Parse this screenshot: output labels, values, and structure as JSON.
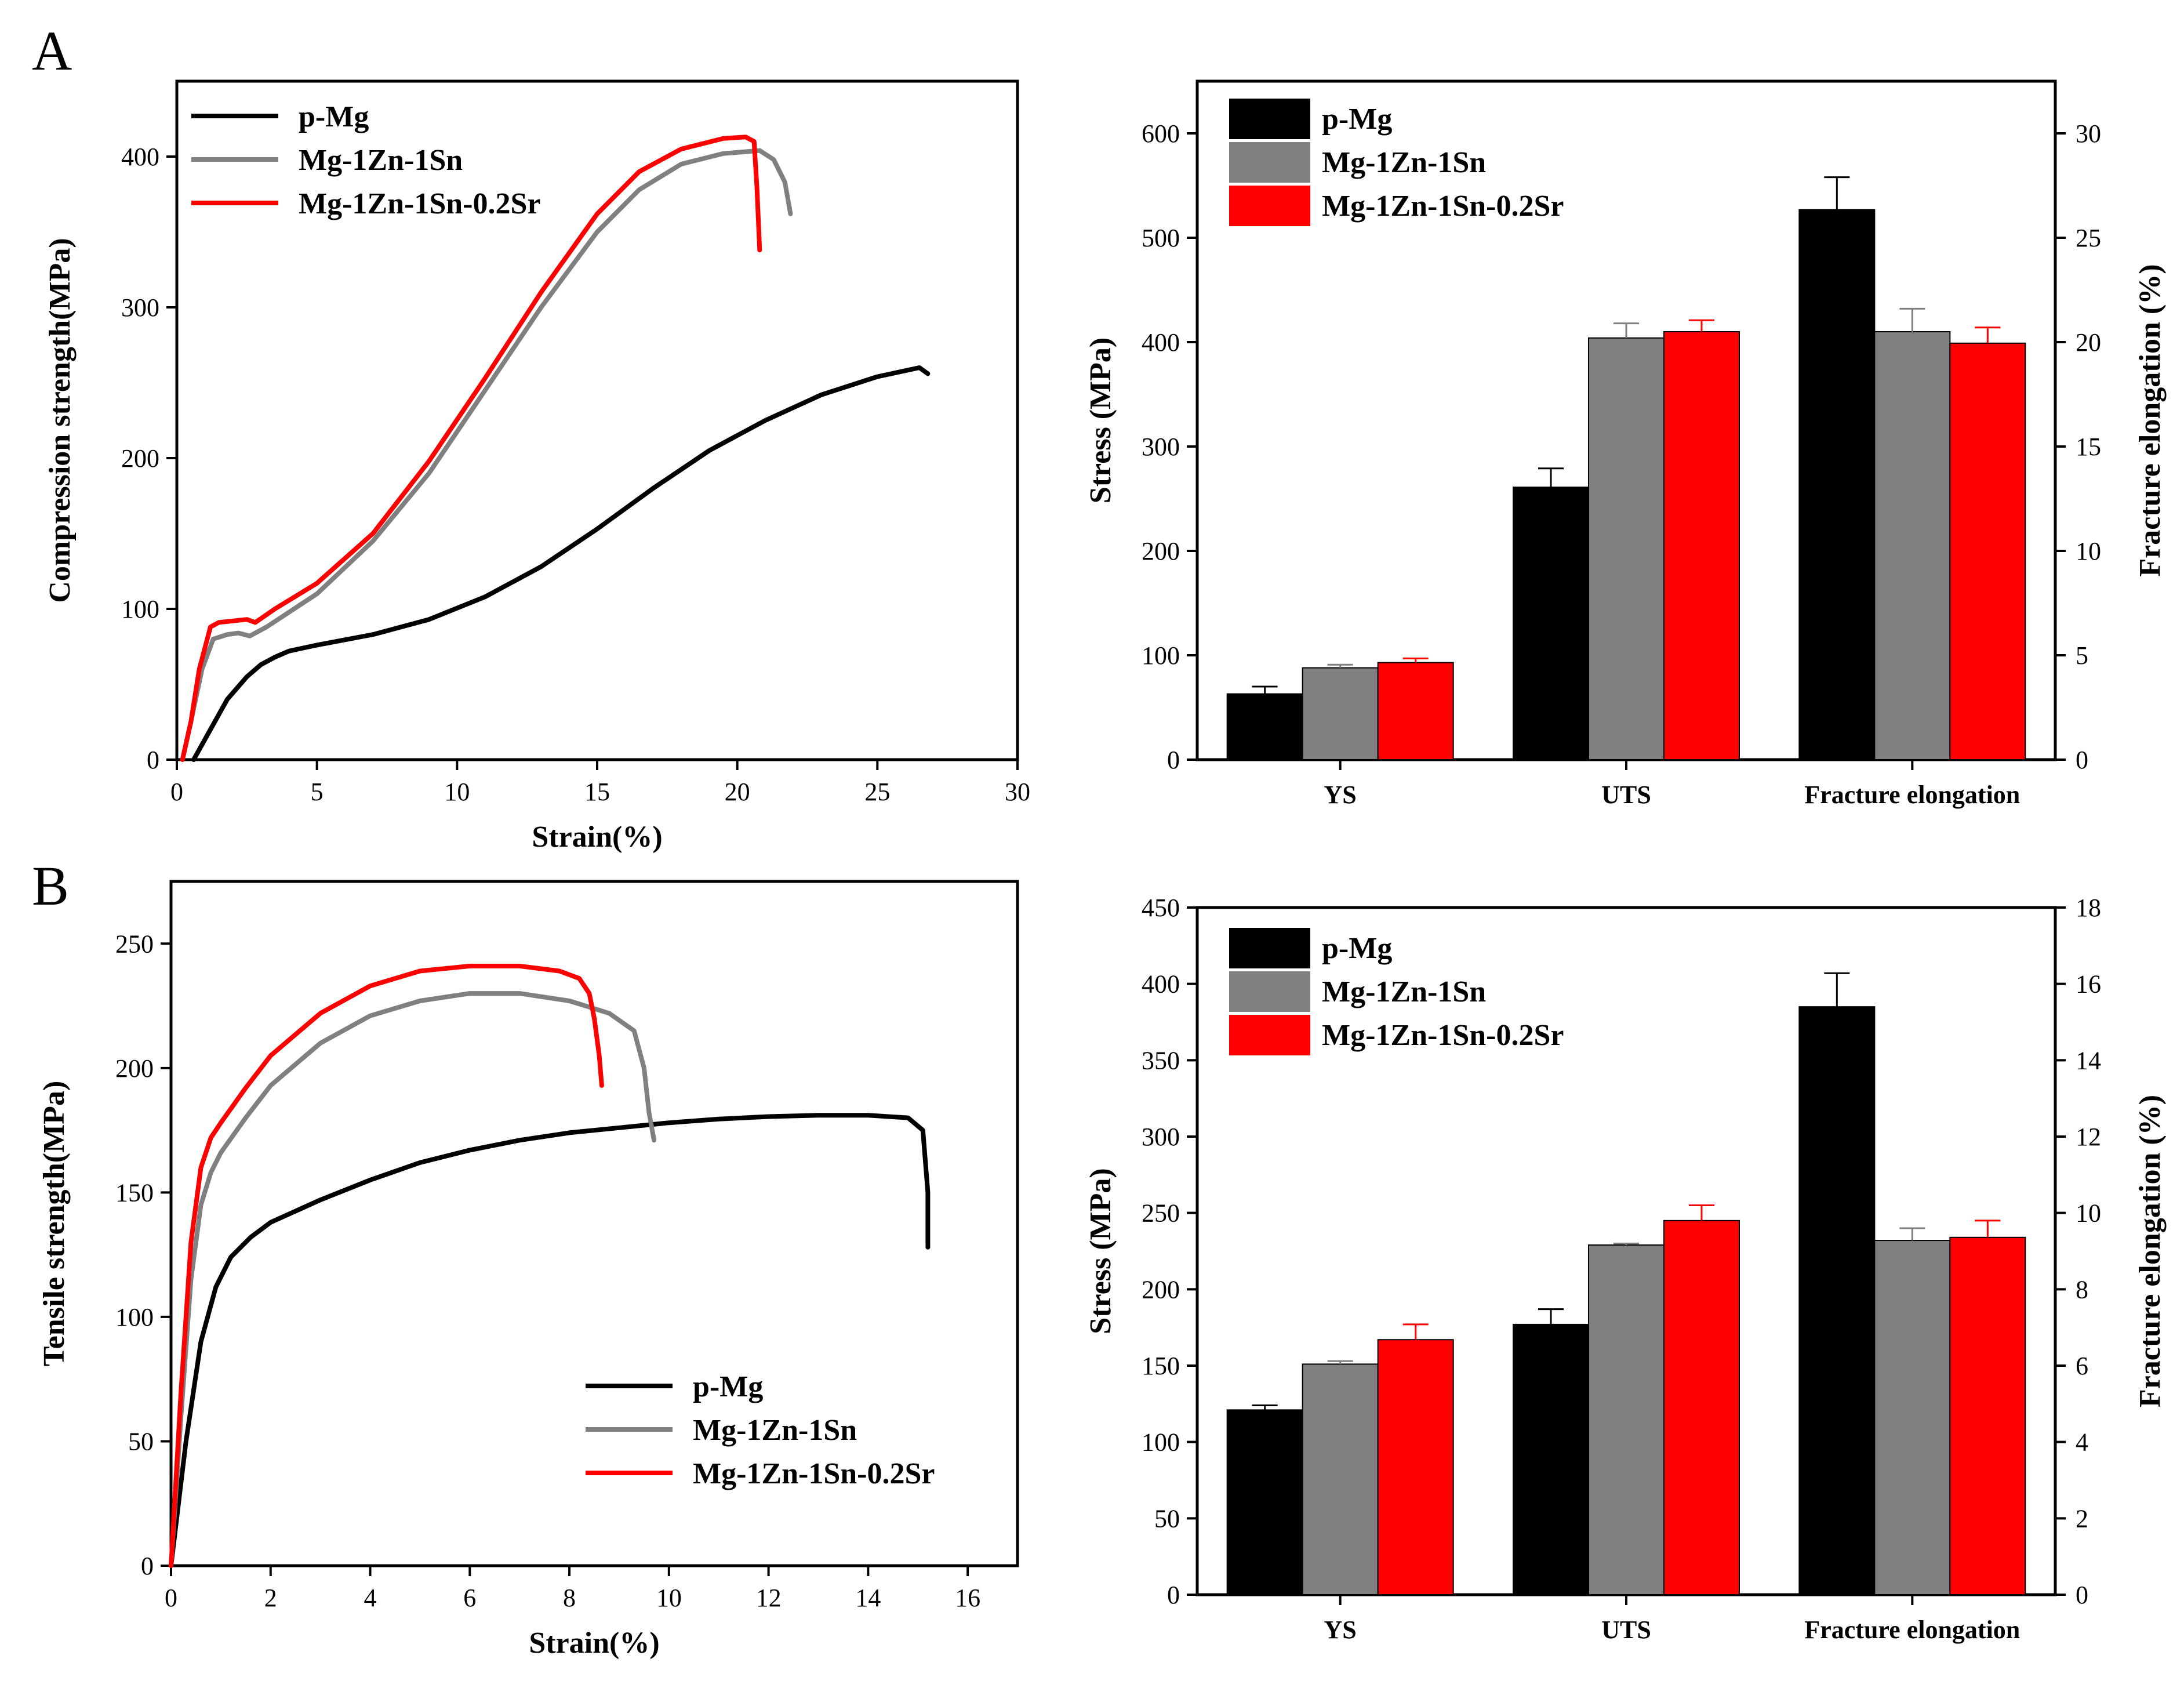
{
  "figure": {
    "panel_labels": [
      "A",
      "B"
    ],
    "colors": {
      "p-Mg": "#000000",
      "Mg-1Zn-1Sn": "#808080",
      "Mg-1Zn-1Sn-0.2Sr": "#ff0000"
    }
  },
  "chart_data": [
    {
      "id": "A-curve",
      "type": "line",
      "xlabel": "Strain(%)",
      "ylabel": "Compression strength(MPa)",
      "xlim": [
        0,
        30
      ],
      "ylim": [
        0,
        450
      ],
      "xticks": [
        0,
        5,
        10,
        15,
        20,
        25,
        30
      ],
      "yticks": [
        0,
        100,
        200,
        300,
        400
      ],
      "legend_position": "top-left",
      "series": [
        {
          "name": "p-Mg",
          "color": "#000000",
          "x": [
            0.6,
            1.2,
            1.8,
            2.5,
            3.0,
            3.5,
            4.0,
            5.0,
            7.0,
            9.0,
            11.0,
            13.0,
            15.0,
            17.0,
            19.0,
            21.0,
            23.0,
            25.0,
            26.5,
            26.8
          ],
          "y": [
            0,
            20,
            40,
            55,
            63,
            68,
            72,
            76,
            83,
            93,
            108,
            128,
            153,
            180,
            205,
            225,
            242,
            254,
            260,
            256
          ]
        },
        {
          "name": "Mg-1Zn-1Sn",
          "color": "#808080",
          "x": [
            0.2,
            0.5,
            0.9,
            1.3,
            1.8,
            2.2,
            2.6,
            3.2,
            5.0,
            7.0,
            9.0,
            11.0,
            13.0,
            15.0,
            16.5,
            18.0,
            19.5,
            20.8,
            21.3,
            21.7,
            21.9
          ],
          "y": [
            0,
            25,
            60,
            80,
            83,
            84,
            82,
            88,
            110,
            145,
            190,
            245,
            300,
            350,
            378,
            395,
            402,
            404,
            398,
            383,
            362
          ]
        },
        {
          "name": "Mg-1Zn-1Sn-0.2Sr",
          "color": "#ff0000",
          "x": [
            0.2,
            0.5,
            0.8,
            1.2,
            1.5,
            2.0,
            2.5,
            2.8,
            3.5,
            5.0,
            7.0,
            9.0,
            11.0,
            13.0,
            15.0,
            16.5,
            18.0,
            19.5,
            20.3,
            20.6,
            20.7,
            20.8
          ],
          "y": [
            0,
            25,
            60,
            88,
            91,
            92,
            93,
            91,
            100,
            117,
            150,
            198,
            253,
            310,
            362,
            390,
            405,
            412,
            413,
            410,
            380,
            338
          ]
        }
      ]
    },
    {
      "id": "A-bar",
      "type": "bar",
      "ylabel": "Stress (MPa)",
      "y2label": "Fracture elongation (%)",
      "ylim": [
        0,
        650
      ],
      "y2lim": [
        0,
        32.5
      ],
      "yticks": [
        0,
        100,
        200,
        300,
        400,
        500,
        600
      ],
      "y2ticks": [
        0,
        5,
        10,
        15,
        20,
        25,
        30
      ],
      "categories": [
        "YS",
        "UTS",
        "Fracture elongation"
      ],
      "legend_position": "top-left",
      "series": [
        {
          "name": "p-Mg",
          "color": "#000000",
          "values": [
            63,
            261,
            527
          ],
          "errors": [
            7,
            18,
            31
          ]
        },
        {
          "name": "Mg-1Zn-1Sn",
          "color": "#808080",
          "values": [
            88,
            404,
            410
          ],
          "errors": [
            3,
            14,
            22
          ]
        },
        {
          "name": "Mg-1Zn-1Sn-0.2Sr",
          "color": "#ff0000",
          "values": [
            93,
            410,
            399
          ],
          "errors": [
            4,
            11,
            15
          ]
        }
      ]
    },
    {
      "id": "B-curve",
      "type": "line",
      "xlabel": "Strain(%)",
      "ylabel": "Tensile strength(MPa)",
      "xlim": [
        0,
        17
      ],
      "ylim": [
        0,
        275
      ],
      "xticks": [
        0,
        2,
        4,
        6,
        8,
        10,
        12,
        14,
        16
      ],
      "yticks": [
        0,
        50,
        100,
        150,
        200,
        250
      ],
      "legend_position": "bottom-right",
      "series": [
        {
          "name": "p-Mg",
          "color": "#000000",
          "x": [
            0,
            0.3,
            0.6,
            0.9,
            1.2,
            1.6,
            2.0,
            3.0,
            4.0,
            5.0,
            6.0,
            7.0,
            8.0,
            9.0,
            10.0,
            11.0,
            12.0,
            13.0,
            14.0,
            14.8,
            15.1,
            15.2,
            15.2
          ],
          "y": [
            0,
            50,
            90,
            112,
            124,
            132,
            138,
            147,
            155,
            162,
            167,
            171,
            174,
            176,
            178,
            179.5,
            180.5,
            181,
            181,
            180,
            175,
            150,
            128
          ]
        },
        {
          "name": "Mg-1Zn-1Sn",
          "color": "#808080",
          "x": [
            0,
            0.2,
            0.4,
            0.6,
            0.8,
            1.0,
            1.5,
            2.0,
            3.0,
            4.0,
            5.0,
            6.0,
            7.0,
            8.0,
            8.8,
            9.3,
            9.5,
            9.6,
            9.7
          ],
          "y": [
            0,
            60,
            115,
            145,
            158,
            166,
            180,
            193,
            210,
            221,
            227,
            230,
            230,
            227,
            222,
            215,
            200,
            182,
            171
          ]
        },
        {
          "name": "Mg-1Zn-1Sn-0.2Sr",
          "color": "#ff0000",
          "x": [
            0,
            0.2,
            0.4,
            0.6,
            0.8,
            1.0,
            1.5,
            2.0,
            3.0,
            4.0,
            5.0,
            6.0,
            7.0,
            7.8,
            8.2,
            8.4,
            8.5,
            8.6,
            8.65
          ],
          "y": [
            0,
            70,
            130,
            160,
            172,
            178,
            192,
            205,
            222,
            233,
            239,
            241,
            241,
            239,
            236,
            230,
            220,
            205,
            193
          ]
        }
      ]
    },
    {
      "id": "B-bar",
      "type": "bar",
      "ylabel": "Stress (MPa)",
      "y2label": "Fracture elongation (%)",
      "ylim": [
        0,
        450
      ],
      "y2lim": [
        0,
        18
      ],
      "yticks": [
        0,
        50,
        100,
        150,
        200,
        250,
        300,
        350,
        400,
        450
      ],
      "y2ticks": [
        0,
        2,
        4,
        6,
        8,
        10,
        12,
        14,
        16,
        18
      ],
      "categories": [
        "YS",
        "UTS",
        "Fracture elongation"
      ],
      "legend_position": "top-left",
      "series": [
        {
          "name": "p-Mg",
          "color": "#000000",
          "values": [
            121,
            177,
            385
          ],
          "errors": [
            3,
            10,
            22
          ]
        },
        {
          "name": "Mg-1Zn-1Sn",
          "color": "#808080",
          "values": [
            151,
            229,
            232
          ],
          "errors": [
            2,
            1,
            8
          ]
        },
        {
          "name": "Mg-1Zn-1Sn-0.2Sr",
          "color": "#ff0000",
          "values": [
            167,
            245,
            234
          ],
          "errors": [
            10,
            10,
            11
          ]
        }
      ]
    }
  ]
}
